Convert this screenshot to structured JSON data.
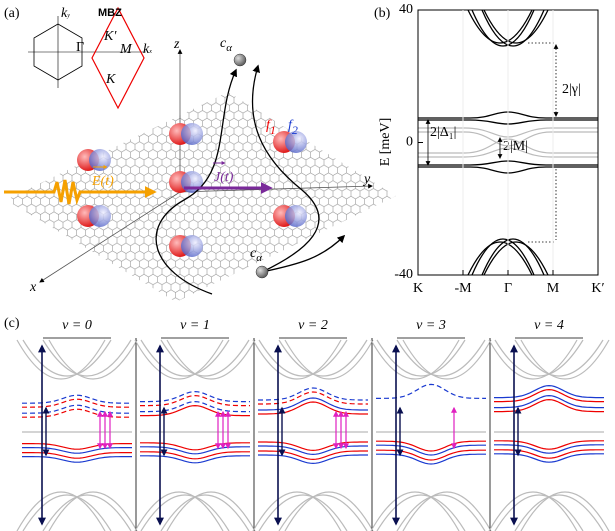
{
  "panel_a": {
    "label": "(a)",
    "mbz": "MBZ",
    "bz_k_prime": "K′",
    "bz_m": "M",
    "bz_gamma": "Γ",
    "bz_k": "K",
    "kx": {
      "base": "k",
      "sub": "x"
    },
    "ky": {
      "base": "k",
      "sub": "y"
    },
    "axis_z": "z",
    "axis_y": "y",
    "axis_x": "x",
    "electron_1": {
      "base": "c",
      "sub": "α"
    },
    "electron_2": {
      "base": "c",
      "sub": "α"
    },
    "f1": {
      "base": "f",
      "sub": "1"
    },
    "f2": {
      "base": "f",
      "sub": "2"
    },
    "field": "E(t)",
    "current": "J(t)"
  },
  "panel_b": {
    "label": "(b)"
  },
  "chart_data": {
    "type": "line",
    "ylabel": "E [meV]",
    "ylim": [
      -40,
      40
    ],
    "yticks": [
      -40,
      0,
      40
    ],
    "categories": [
      "K",
      "-M",
      "Γ",
      "M",
      "K′"
    ],
    "annotations": [
      "2|γ|",
      "2|Δ₁|",
      "2|M|"
    ]
  },
  "panel_c": {
    "label": "(c)",
    "fillings": [
      "ν = 0",
      "ν = 1",
      "ν = 2",
      "ν = 3",
      "ν = 4"
    ]
  }
}
